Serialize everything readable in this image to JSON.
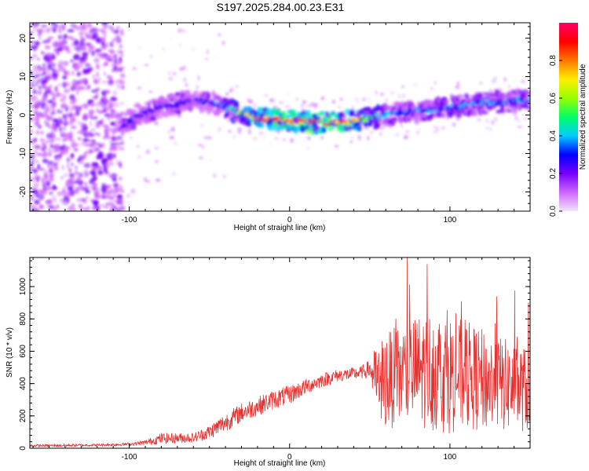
{
  "chart_data": [
    {
      "type": "heatmap",
      "title": "S197.2025.284.00.23.E31",
      "xlabel": "Height of straight line (km)",
      "ylabel": "Frequency (Hz)",
      "xlim": [
        -162,
        150
      ],
      "ylim": [
        -25,
        24
      ],
      "xticks": [
        -100,
        0,
        100
      ],
      "yticks": [
        -20,
        -10,
        0,
        10,
        20
      ],
      "colorbar": {
        "label": "Normalized spectral amplitude",
        "range": [
          0,
          1
        ],
        "ticks": [
          0.0,
          0.2,
          0.4,
          0.6,
          0.8
        ],
        "colormap": [
          "#f2e4f8",
          "#cc66ff",
          "#7700ff",
          "#0000ff",
          "#00ccff",
          "#00ff66",
          "#99ff00",
          "#ffee00",
          "#ff7700",
          "#ff0000",
          "#ff0066"
        ]
      },
      "ridge": {
        "description_points_x": [
          -105,
          -95,
          -80,
          -60,
          -45,
          -35,
          -20,
          0,
          20,
          40,
          60,
          80,
          100,
          120,
          150
        ],
        "frequency": [
          -3,
          0,
          2,
          4,
          3,
          1,
          -1,
          -1.5,
          -2,
          -1.5,
          0,
          1,
          2,
          3,
          4
        ],
        "amplitude": [
          0.25,
          0.3,
          0.3,
          0.3,
          0.35,
          0.5,
          0.85,
          0.9,
          0.95,
          0.85,
          0.4,
          0.35,
          0.4,
          0.4,
          0.4
        ]
      }
    },
    {
      "type": "line",
      "xlabel": "Height of straight line (km)",
      "ylabel": "SNR (10 * v/v)",
      "xlim": [
        -162,
        150
      ],
      "ylim": [
        0,
        1180
      ],
      "xticks": [
        -100,
        0,
        100
      ],
      "yticks": [
        0,
        200,
        400,
        600,
        800,
        1000
      ],
      "color": "#e8302f",
      "envelope": {
        "x": [
          -162,
          -120,
          -100,
          -90,
          -80,
          -60,
          -50,
          -40,
          -30,
          -20,
          -10,
          0,
          10,
          20,
          30,
          40,
          45,
          50,
          55,
          60,
          70,
          80,
          90,
          100,
          110,
          120,
          130,
          140,
          150
        ],
        "mean": [
          15,
          20,
          25,
          35,
          60,
          65,
          100,
          160,
          220,
          260,
          300,
          330,
          380,
          420,
          450,
          460,
          470,
          490,
          400,
          420,
          450,
          480,
          480,
          460,
          450,
          420,
          400,
          380,
          360
        ],
        "spread": [
          8,
          8,
          10,
          15,
          35,
          30,
          45,
          60,
          60,
          60,
          60,
          60,
          50,
          45,
          40,
          40,
          40,
          60,
          260,
          300,
          320,
          350,
          380,
          370,
          340,
          320,
          300,
          280,
          260
        ]
      }
    }
  ]
}
